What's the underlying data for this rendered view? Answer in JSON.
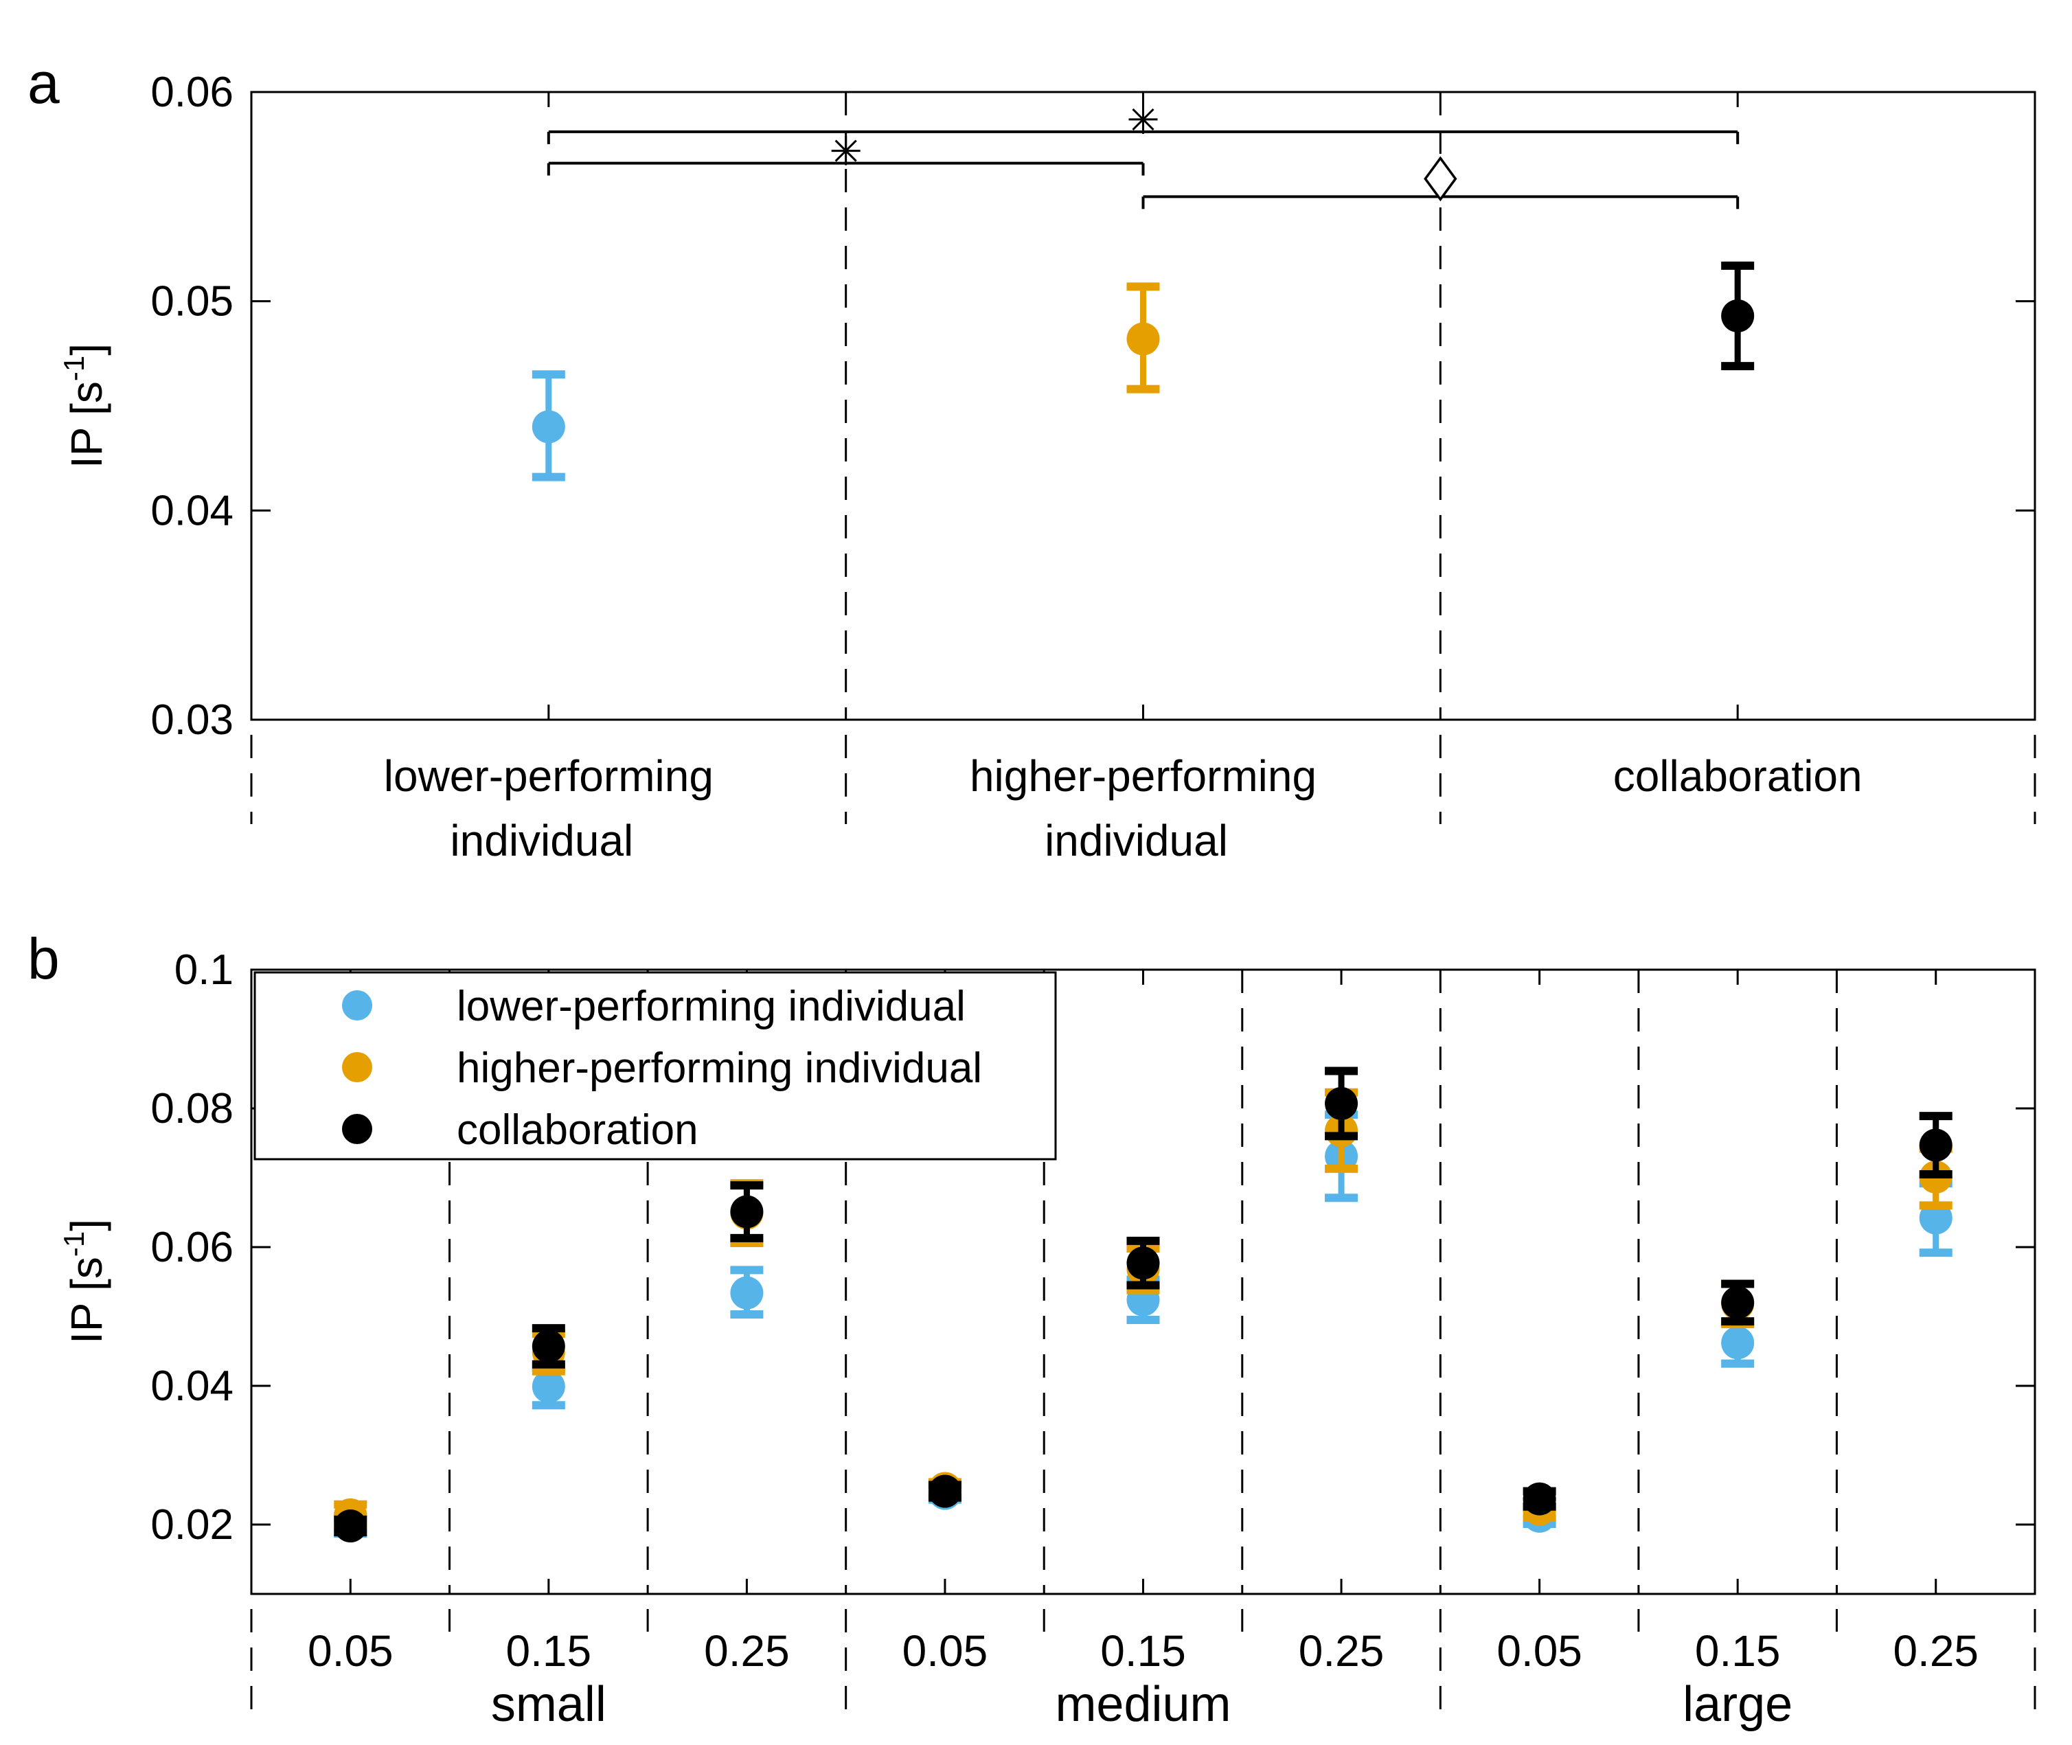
{
  "colors": {
    "lower": "#56b4e9",
    "higher": "#e69f00",
    "collab": "#000000",
    "axis": "#000000",
    "background": "#ffffff"
  },
  "panel_labels": {
    "a": "a",
    "b": "b"
  },
  "chart_data": [
    {
      "id": "a",
      "type": "scatter",
      "title": "",
      "xlabel": "",
      "ylabel": "IP [s",
      "ylabel_exp": "-1",
      "ylabel_close": "]",
      "ylim": [
        0.03,
        0.06
      ],
      "ytick_values": [
        0.03,
        0.04,
        0.05,
        0.06
      ],
      "ytick_labels": [
        "0.03",
        "0.04",
        "0.05",
        "0.06"
      ],
      "categories": [
        {
          "line1": "lower-performing",
          "line2": "individual"
        },
        {
          "line1": "higher-performing",
          "line2": "individual"
        },
        {
          "line1": "collaboration",
          "line2": ""
        }
      ],
      "points": [
        {
          "group": "lower-performing individual",
          "series": "lower",
          "mean": 0.044,
          "lower": 0.0416,
          "upper": 0.0465
        },
        {
          "group": "higher-performing individual",
          "series": "higher",
          "mean": 0.0482,
          "lower": 0.0458,
          "upper": 0.0507
        },
        {
          "group": "collaboration",
          "series": "collab",
          "mean": 0.0493,
          "lower": 0.0469,
          "upper": 0.0517
        }
      ],
      "significance": [
        {
          "from": 0,
          "to": 2,
          "y": 0.0581,
          "marker": "asterisk"
        },
        {
          "from": 0,
          "to": 1,
          "y": 0.0566,
          "marker": "asterisk"
        },
        {
          "from": 1,
          "to": 2,
          "y": 0.055,
          "marker": "diamond"
        }
      ]
    },
    {
      "id": "b",
      "type": "scatter",
      "title": "",
      "xlabel": "",
      "ylabel": "IP [s",
      "ylabel_exp": "-1",
      "ylabel_close": "]",
      "ylim": [
        0.01,
        0.1
      ],
      "ytick_values": [
        0.02,
        0.04,
        0.06,
        0.08,
        0.1
      ],
      "ytick_labels": [
        "0.02",
        "0.04",
        "0.06",
        "0.08",
        "0.1"
      ],
      "categories": [
        "0.05",
        "0.15",
        "0.25",
        "0.05",
        "0.15",
        "0.25",
        "0.05",
        "0.15",
        "0.25"
      ],
      "groups": [
        "small",
        "medium",
        "large"
      ],
      "legend": {
        "position": "top-left",
        "entries": [
          {
            "series": "lower",
            "label": "lower-performing individual"
          },
          {
            "series": "higher",
            "label": "higher-performing individual"
          },
          {
            "series": "collab",
            "label": "collaboration"
          }
        ]
      },
      "series": [
        {
          "name": "lower-performing individual",
          "key": "lower",
          "values": [
            0.0199,
            0.0399,
            0.0534,
            0.0245,
            0.0524,
            0.0731,
            0.0212,
            0.0462,
            0.0642
          ],
          "lower": [
            0.0187,
            0.0372,
            0.0503,
            0.0236,
            0.0495,
            0.0671,
            0.0201,
            0.0432,
            0.0592
          ],
          "upper": [
            0.0212,
            0.0426,
            0.0567,
            0.0255,
            0.0553,
            0.0791,
            0.0223,
            0.0491,
            0.0692
          ]
        },
        {
          "name": "higher-performing individual",
          "key": "higher",
          "values": [
            0.0214,
            0.0448,
            0.0649,
            0.0252,
            0.0568,
            0.0768,
            0.0222,
            0.0518,
            0.0701
          ],
          "lower": [
            0.0199,
            0.0421,
            0.0606,
            0.0243,
            0.0538,
            0.0713,
            0.021,
            0.0489,
            0.066
          ],
          "upper": [
            0.0229,
            0.0475,
            0.0692,
            0.0261,
            0.0598,
            0.0823,
            0.0234,
            0.0547,
            0.0742
          ]
        },
        {
          "name": "collaboration",
          "key": "collab",
          "values": [
            0.0198,
            0.0457,
            0.0651,
            0.0248,
            0.0577,
            0.0807,
            0.0237,
            0.052,
            0.0747
          ],
          "lower": [
            0.0189,
            0.0431,
            0.0613,
            0.0239,
            0.0545,
            0.076,
            0.0226,
            0.0493,
            0.0705
          ],
          "upper": [
            0.0207,
            0.0483,
            0.0689,
            0.0257,
            0.0609,
            0.0854,
            0.0248,
            0.0547,
            0.0789
          ]
        }
      ]
    }
  ]
}
